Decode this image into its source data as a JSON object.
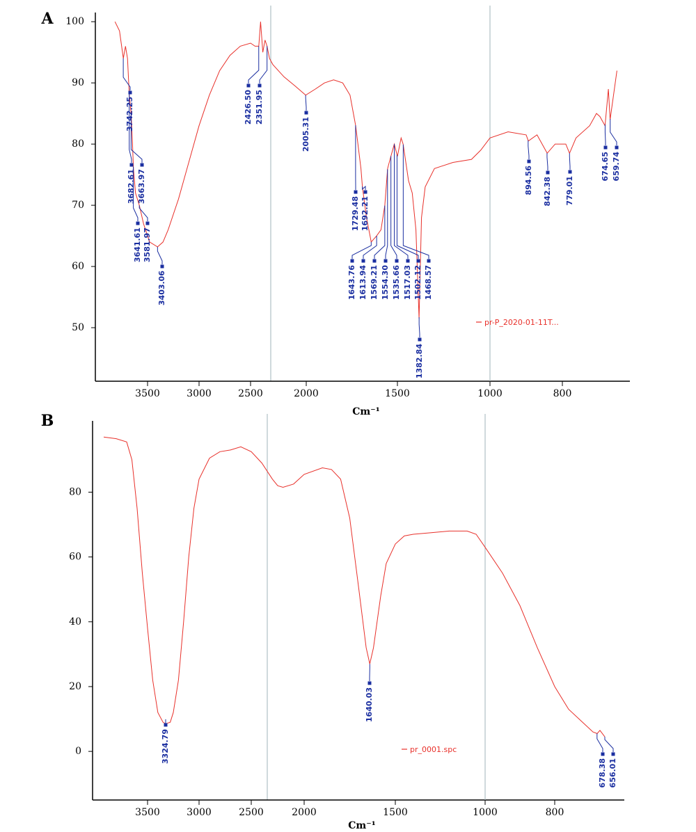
{
  "chart_data": [
    {
      "type": "line",
      "label": "A",
      "xlabel": "Cm⁻¹",
      "xlim": [
        4000,
        600
      ],
      "xticks": [
        3500,
        3000,
        2500,
        2000,
        1500,
        1000,
        800
      ],
      "ylim": [
        41.25,
        101.5
      ],
      "yticks": [
        50,
        60,
        70,
        80,
        90,
        100
      ],
      "x": [
        3825,
        3780,
        3742,
        3720,
        3700,
        3682,
        3664,
        3650,
        3641,
        3620,
        3582,
        3540,
        3480,
        3403,
        3350,
        3300,
        3200,
        3100,
        3000,
        2900,
        2800,
        2700,
        2600,
        2500,
        2460,
        2426,
        2410,
        2390,
        2370,
        2352,
        2330,
        2300,
        2200,
        2100,
        2005,
        1950,
        1900,
        1850,
        1800,
        1760,
        1729,
        1700,
        1692,
        1670,
        1650,
        1644,
        1614,
        1590,
        1569,
        1554,
        1536,
        1517,
        1500,
        1480,
        1469,
        1440,
        1420,
        1400,
        1383,
        1370,
        1350,
        1300,
        1200,
        1100,
        1050,
        1000,
        950,
        900,
        894,
        870,
        842,
        820,
        790,
        779,
        760,
        720,
        700,
        690,
        675,
        665,
        660,
        650,
        640
      ],
      "series": [
        {
          "name": "pr-P_2020-01-11T...",
          "color": "#e8302a",
          "values": [
            100,
            98.5,
            94,
            96,
            94,
            88,
            85,
            80,
            76,
            72,
            70,
            67,
            64,
            63.2,
            64,
            66,
            71,
            77,
            83,
            88,
            92,
            94.5,
            96,
            96.5,
            96,
            96,
            100,
            95,
            97,
            96,
            94,
            93,
            91,
            89.5,
            88,
            89,
            90,
            90.5,
            90,
            88,
            83,
            76,
            73,
            68,
            65,
            64,
            65,
            66,
            70,
            76,
            78,
            80,
            78,
            81,
            80,
            74,
            72,
            66,
            51.5,
            68,
            73,
            76,
            77,
            77.5,
            79,
            81,
            82,
            81.5,
            80.5,
            81.5,
            78.5,
            80,
            80,
            78.5,
            81,
            83,
            85,
            84.5,
            83,
            89,
            84,
            88,
            92
          ]
        }
      ],
      "peaks": [
        3742.25,
        3682.61,
        3663.97,
        3641.61,
        3581.97,
        3403.06,
        2426.5,
        2351.95,
        2005.31,
        1729.48,
        1692.21,
        1643.76,
        1613.94,
        1569.21,
        1554.3,
        1535.66,
        1517.03,
        1502.12,
        1468.57,
        1382.84,
        894.56,
        842.38,
        779.01,
        674.65,
        659.74
      ],
      "peak_labels": [
        "3742.25",
        "3682.61",
        "3663.97",
        "3641.61",
        "3581.97",
        "3403.06",
        "2426.50",
        "2351.95",
        "2005.31",
        "1729.48",
        "1692.21",
        "1643.76",
        "1613.94",
        "1569.21",
        "1554.30",
        "1535.66",
        "1517.03",
        "1502.12",
        "1468.57",
        "1382.84",
        "894.56",
        "842.38",
        "779.01",
        "674.65",
        "659.74"
      ]
    },
    {
      "type": "line",
      "label": "B",
      "xlabel": "Cm⁻¹",
      "xlim": [
        4000,
        600
      ],
      "xticks": [
        3500,
        3000,
        2500,
        2000,
        1500,
        1000,
        800
      ],
      "ylim": [
        -15,
        102
      ],
      "yticks": [
        0,
        20,
        40,
        60,
        80
      ],
      "x": [
        3920,
        3800,
        3700,
        3650,
        3600,
        3550,
        3500,
        3450,
        3400,
        3350,
        3325,
        3280,
        3250,
        3200,
        3150,
        3100,
        3050,
        3000,
        2900,
        2800,
        2700,
        2600,
        2500,
        2400,
        2300,
        2250,
        2200,
        2100,
        2000,
        1900,
        1850,
        1800,
        1750,
        1700,
        1660,
        1640,
        1620,
        1580,
        1550,
        1500,
        1450,
        1400,
        1300,
        1200,
        1100,
        1050,
        1000,
        950,
        900,
        850,
        800,
        760,
        720,
        690,
        678,
        670,
        656
      ],
      "series": [
        {
          "name": "pr_0001.spc",
          "color": "#e8302a",
          "values": [
            97,
            96.5,
            95.5,
            90,
            75,
            55,
            38,
            22,
            12,
            9,
            8.5,
            9,
            12,
            22,
            40,
            60,
            75,
            84,
            90.5,
            92.5,
            93,
            94,
            92.5,
            89,
            84,
            82,
            81.5,
            82.5,
            85.5,
            87.5,
            87,
            84,
            72,
            50,
            32,
            27,
            32,
            48,
            58,
            64,
            66.5,
            67,
            67.5,
            68,
            68,
            67,
            63,
            55,
            45,
            32,
            20,
            13,
            9,
            6,
            5.5,
            6.5,
            4.5
          ]
        }
      ],
      "peaks": [
        3324.79,
        1640.03,
        678.38,
        656.01
      ],
      "peak_labels": [
        "3324.79",
        "1640.03",
        "678.38",
        "656.01"
      ]
    }
  ]
}
